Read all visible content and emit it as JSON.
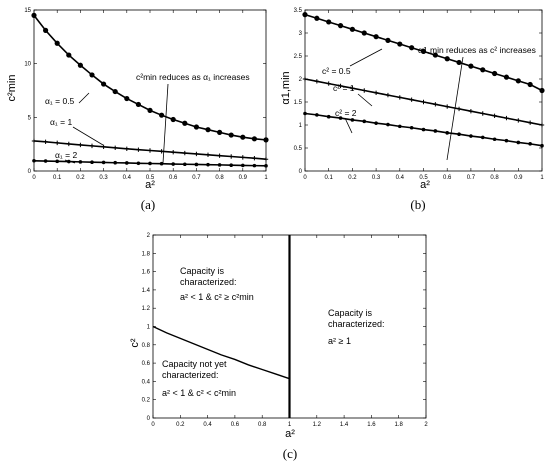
{
  "chart_data": [
    {
      "id": "a",
      "type": "line",
      "caption": "(a)",
      "xlabel": "a²",
      "ylabel": "c²min",
      "xlim": [
        0,
        1
      ],
      "ylim": [
        0,
        15
      ],
      "xticks": [
        0,
        0.1,
        0.2,
        0.3,
        0.4,
        0.5,
        0.6,
        0.7,
        0.8,
        0.9,
        1
      ],
      "xtick_labels": [
        "0",
        "0.1",
        "0.2",
        "0.3",
        "0.4",
        "0.5",
        "0.6",
        "0.7",
        "0.8",
        "0.9",
        "1"
      ],
      "yticks": [
        0,
        5,
        10,
        15
      ],
      "ytick_labels": [
        "0",
        "5",
        "10",
        "15"
      ],
      "grid": false,
      "x": [
        0,
        0.05,
        0.1,
        0.15,
        0.2,
        0.25,
        0.3,
        0.35,
        0.4,
        0.45,
        0.5,
        0.55,
        0.6,
        0.65,
        0.7,
        0.75,
        0.8,
        0.85,
        0.9,
        0.95,
        1
      ],
      "series": [
        {
          "marker": "circle",
          "values": [
            14.5,
            13.1,
            11.9,
            10.8,
            9.85,
            8.95,
            8.1,
            7.4,
            6.75,
            6.2,
            5.65,
            5.2,
            4.8,
            4.45,
            4.1,
            3.85,
            3.6,
            3.35,
            3.15,
            3.0,
            2.9
          ]
        },
        {
          "marker": "plus",
          "values": [
            2.8,
            2.72,
            2.62,
            2.52,
            2.43,
            2.34,
            2.25,
            2.16,
            2.07,
            1.99,
            1.91,
            1.83,
            1.75,
            1.67,
            1.59,
            1.51,
            1.43,
            1.35,
            1.27,
            1.19,
            1.1
          ]
        },
        {
          "marker": "dot",
          "values": [
            0.95,
            0.93,
            0.9,
            0.88,
            0.85,
            0.82,
            0.8,
            0.77,
            0.75,
            0.72,
            0.7,
            0.68,
            0.65,
            0.63,
            0.61,
            0.59,
            0.57,
            0.54,
            0.52,
            0.5,
            0.48
          ]
        }
      ],
      "annotations": [
        {
          "text": "α₁ = 0.5"
        },
        {
          "text": "α₁ = 1"
        },
        {
          "text": "α₁ = 2"
        },
        {
          "text": "c²min reduces as α₁ increases"
        }
      ]
    },
    {
      "id": "b",
      "type": "line",
      "caption": "(b)",
      "xlabel": "a²",
      "ylabel": "α1,min",
      "xlim": [
        0,
        1
      ],
      "ylim": [
        0,
        3.5
      ],
      "xticks": [
        0,
        0.1,
        0.2,
        0.3,
        0.4,
        0.5,
        0.6,
        0.7,
        0.8,
        0.9,
        1
      ],
      "xtick_labels": [
        "0",
        "0.1",
        "0.2",
        "0.3",
        "0.4",
        "0.5",
        "0.6",
        "0.7",
        "0.8",
        "0.9",
        "1"
      ],
      "yticks": [
        0,
        0.5,
        1,
        1.5,
        2,
        2.5,
        3,
        3.5
      ],
      "ytick_labels": [
        "0",
        "0.5",
        "1",
        "1.5",
        "2",
        "2.5",
        "3",
        "3.5"
      ],
      "grid": false,
      "x": [
        0,
        0.05,
        0.1,
        0.15,
        0.2,
        0.25,
        0.3,
        0.35,
        0.4,
        0.45,
        0.5,
        0.55,
        0.6,
        0.65,
        0.7,
        0.75,
        0.8,
        0.85,
        0.9,
        0.95,
        1
      ],
      "series": [
        {
          "marker": "circle",
          "values": [
            3.4,
            3.32,
            3.24,
            3.16,
            3.08,
            3.0,
            2.92,
            2.84,
            2.76,
            2.68,
            2.6,
            2.52,
            2.44,
            2.36,
            2.28,
            2.2,
            2.12,
            2.04,
            1.96,
            1.88,
            1.75
          ]
        },
        {
          "marker": "plus",
          "values": [
            2.0,
            1.95,
            1.9,
            1.85,
            1.8,
            1.75,
            1.7,
            1.65,
            1.6,
            1.55,
            1.5,
            1.45,
            1.4,
            1.35,
            1.3,
            1.25,
            1.2,
            1.15,
            1.1,
            1.05,
            1.0
          ]
        },
        {
          "marker": "dot",
          "values": [
            1.25,
            1.22,
            1.18,
            1.15,
            1.11,
            1.08,
            1.04,
            1.01,
            0.97,
            0.94,
            0.9,
            0.87,
            0.83,
            0.8,
            0.76,
            0.73,
            0.69,
            0.66,
            0.62,
            0.59,
            0.55
          ]
        }
      ],
      "annotations": [
        {
          "text": "c² = 0.5"
        },
        {
          "text": "c² = 1"
        },
        {
          "text": "c² = 2"
        },
        {
          "text": "α1,min reduces as c² increases"
        }
      ]
    },
    {
      "id": "c",
      "type": "line",
      "caption": "(c)",
      "xlabel": "a²",
      "ylabel": "c²",
      "xlim": [
        0,
        2
      ],
      "ylim": [
        0,
        2
      ],
      "xticks": [
        0,
        0.2,
        0.4,
        0.6,
        0.8,
        1,
        1.2,
        1.4,
        1.6,
        1.8,
        2
      ],
      "xtick_labels": [
        "0",
        "0.2",
        "0.4",
        "0.6",
        "0.8",
        "1",
        "1.2",
        "1.4",
        "1.6",
        "1.8",
        "2"
      ],
      "yticks": [
        0,
        0.2,
        0.4,
        0.6,
        0.8,
        1,
        1.2,
        1.4,
        1.6,
        1.8,
        2
      ],
      "ytick_labels": [
        "0",
        "0.2",
        "0.4",
        "0.6",
        "0.8",
        "1",
        "1.2",
        "1.4",
        "1.6",
        "1.8",
        "2"
      ],
      "grid": false,
      "x": [
        0,
        0.1,
        0.2,
        0.3,
        0.4,
        0.5,
        0.6,
        0.7,
        0.8,
        0.9,
        1
      ],
      "series": [
        {
          "values": [
            1.0,
            0.93,
            0.87,
            0.81,
            0.75,
            0.69,
            0.64,
            0.58,
            0.53,
            0.48,
            0.43
          ]
        }
      ],
      "vline": {
        "x": 1,
        "ymin": 0,
        "ymax": 2
      },
      "annotations": [
        {
          "lines": [
            "Capacity is",
            "characterized:",
            "a² < 1 & c² ≥ c²min"
          ]
        },
        {
          "lines": [
            "Capacity is",
            "characterized:",
            "a² ≥ 1"
          ]
        },
        {
          "lines": [
            "Capacity not yet",
            "characterized:",
            "a² < 1 & c² < c²min"
          ]
        }
      ]
    }
  ]
}
